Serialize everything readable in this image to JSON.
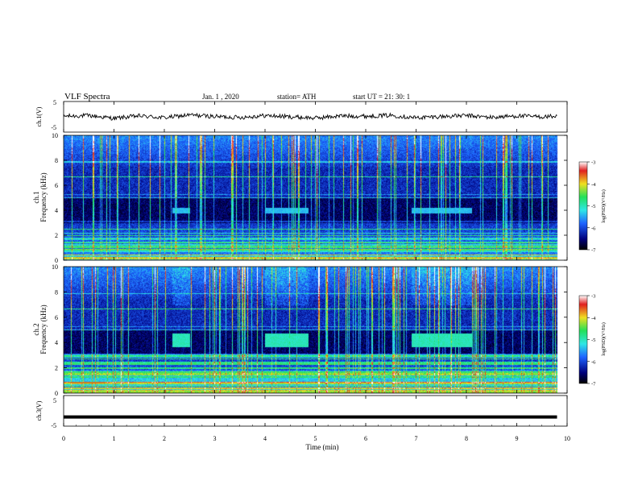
{
  "header": {
    "title": "VLF  Spectra",
    "date": "Jan.  1  , 2020",
    "station": "station= ATH",
    "start": "start  UT  =    21: 30: 1"
  },
  "colors": {
    "spec_low": "#00007a",
    "spec_mid": "#1e64ff",
    "spec_cyan": "#2ee6e6",
    "spec_green": "#22e05a",
    "spec_yellow": "#f0e020",
    "spec_red": "#e02020",
    "trace": "#000000"
  },
  "chart_data": [
    {
      "type": "line",
      "name": "ch1-waveform",
      "ylabel": "ch.1(V)",
      "ylim": [
        -5,
        5
      ],
      "yticks": [
        "5",
        "-5"
      ],
      "x": [
        0,
        0.5,
        1,
        1.5,
        2,
        2.5,
        3,
        3.5,
        4,
        4.5,
        5,
        5.5,
        6,
        6.5,
        7,
        7.5,
        8,
        8.5,
        9,
        9.5,
        9.8
      ],
      "values": [
        0.2,
        0.4,
        -0.5,
        0.3,
        -0.3,
        0.6,
        0.1,
        -0.2,
        0.4,
        0.0,
        -0.4,
        0.3,
        0.2,
        0.5,
        -0.3,
        0.1,
        0.4,
        -0.2,
        0.3,
        0.0,
        0.2
      ]
    },
    {
      "type": "heatmap",
      "name": "ch1-spectrogram",
      "ylabel_1": "ch.1",
      "ylabel_2": "Frequency  (kHz)",
      "ylim": [
        0,
        10
      ],
      "yticks": [
        "0",
        "2",
        "4",
        "6",
        "8",
        "10"
      ],
      "xlim": [
        0,
        10
      ],
      "data_end_min": 9.8,
      "colorbar": {
        "label": "log(PSD)(V²/Hz)",
        "range": [
          -7,
          -3
        ],
        "ticks": [
          "-3",
          "-4",
          "-5",
          "-6",
          "-7"
        ]
      },
      "transmitter_bursts": [
        {
          "start_min": 2.15,
          "end_min": 2.5,
          "freq_khz": 4.0
        },
        {
          "start_min": 4.0,
          "end_min": 4.85,
          "freq_khz": 4.0
        },
        {
          "start_min": 6.9,
          "end_min": 8.1,
          "freq_khz": 4.0
        }
      ]
    },
    {
      "type": "heatmap",
      "name": "ch2-spectrogram",
      "ylabel_1": "ch.2",
      "ylabel_2": "Frequency  (kHz)",
      "ylim": [
        0,
        10
      ],
      "yticks": [
        "0",
        "2",
        "4",
        "6",
        "8",
        "10"
      ],
      "xlim": [
        0,
        10
      ],
      "data_end_min": 9.8,
      "colorbar": {
        "label": "log(PSD)(V²/Hz)",
        "range": [
          -7,
          -3
        ],
        "ticks": [
          "-3",
          "-4",
          "-5",
          "-6",
          "-7"
        ]
      },
      "transmitter_bursts": [
        {
          "start_min": 2.15,
          "end_min": 2.5,
          "freq_khz": 4.2
        },
        {
          "start_min": 4.0,
          "end_min": 4.85,
          "freq_khz": 4.2
        },
        {
          "start_min": 6.9,
          "end_min": 8.1,
          "freq_khz": 4.2
        }
      ]
    },
    {
      "type": "line",
      "name": "ch3-waveform",
      "ylabel": "ch.3(V)",
      "ylim": [
        -5,
        5
      ],
      "yticks": [
        "5",
        "-5"
      ],
      "x": [
        0,
        9.8
      ],
      "values": [
        -2,
        -2
      ]
    }
  ],
  "xaxis": {
    "label": "Time  (min)",
    "range": [
      0,
      10
    ],
    "ticks": [
      "0",
      "1",
      "2",
      "3",
      "4",
      "5",
      "6",
      "7",
      "8",
      "9",
      "10"
    ]
  }
}
